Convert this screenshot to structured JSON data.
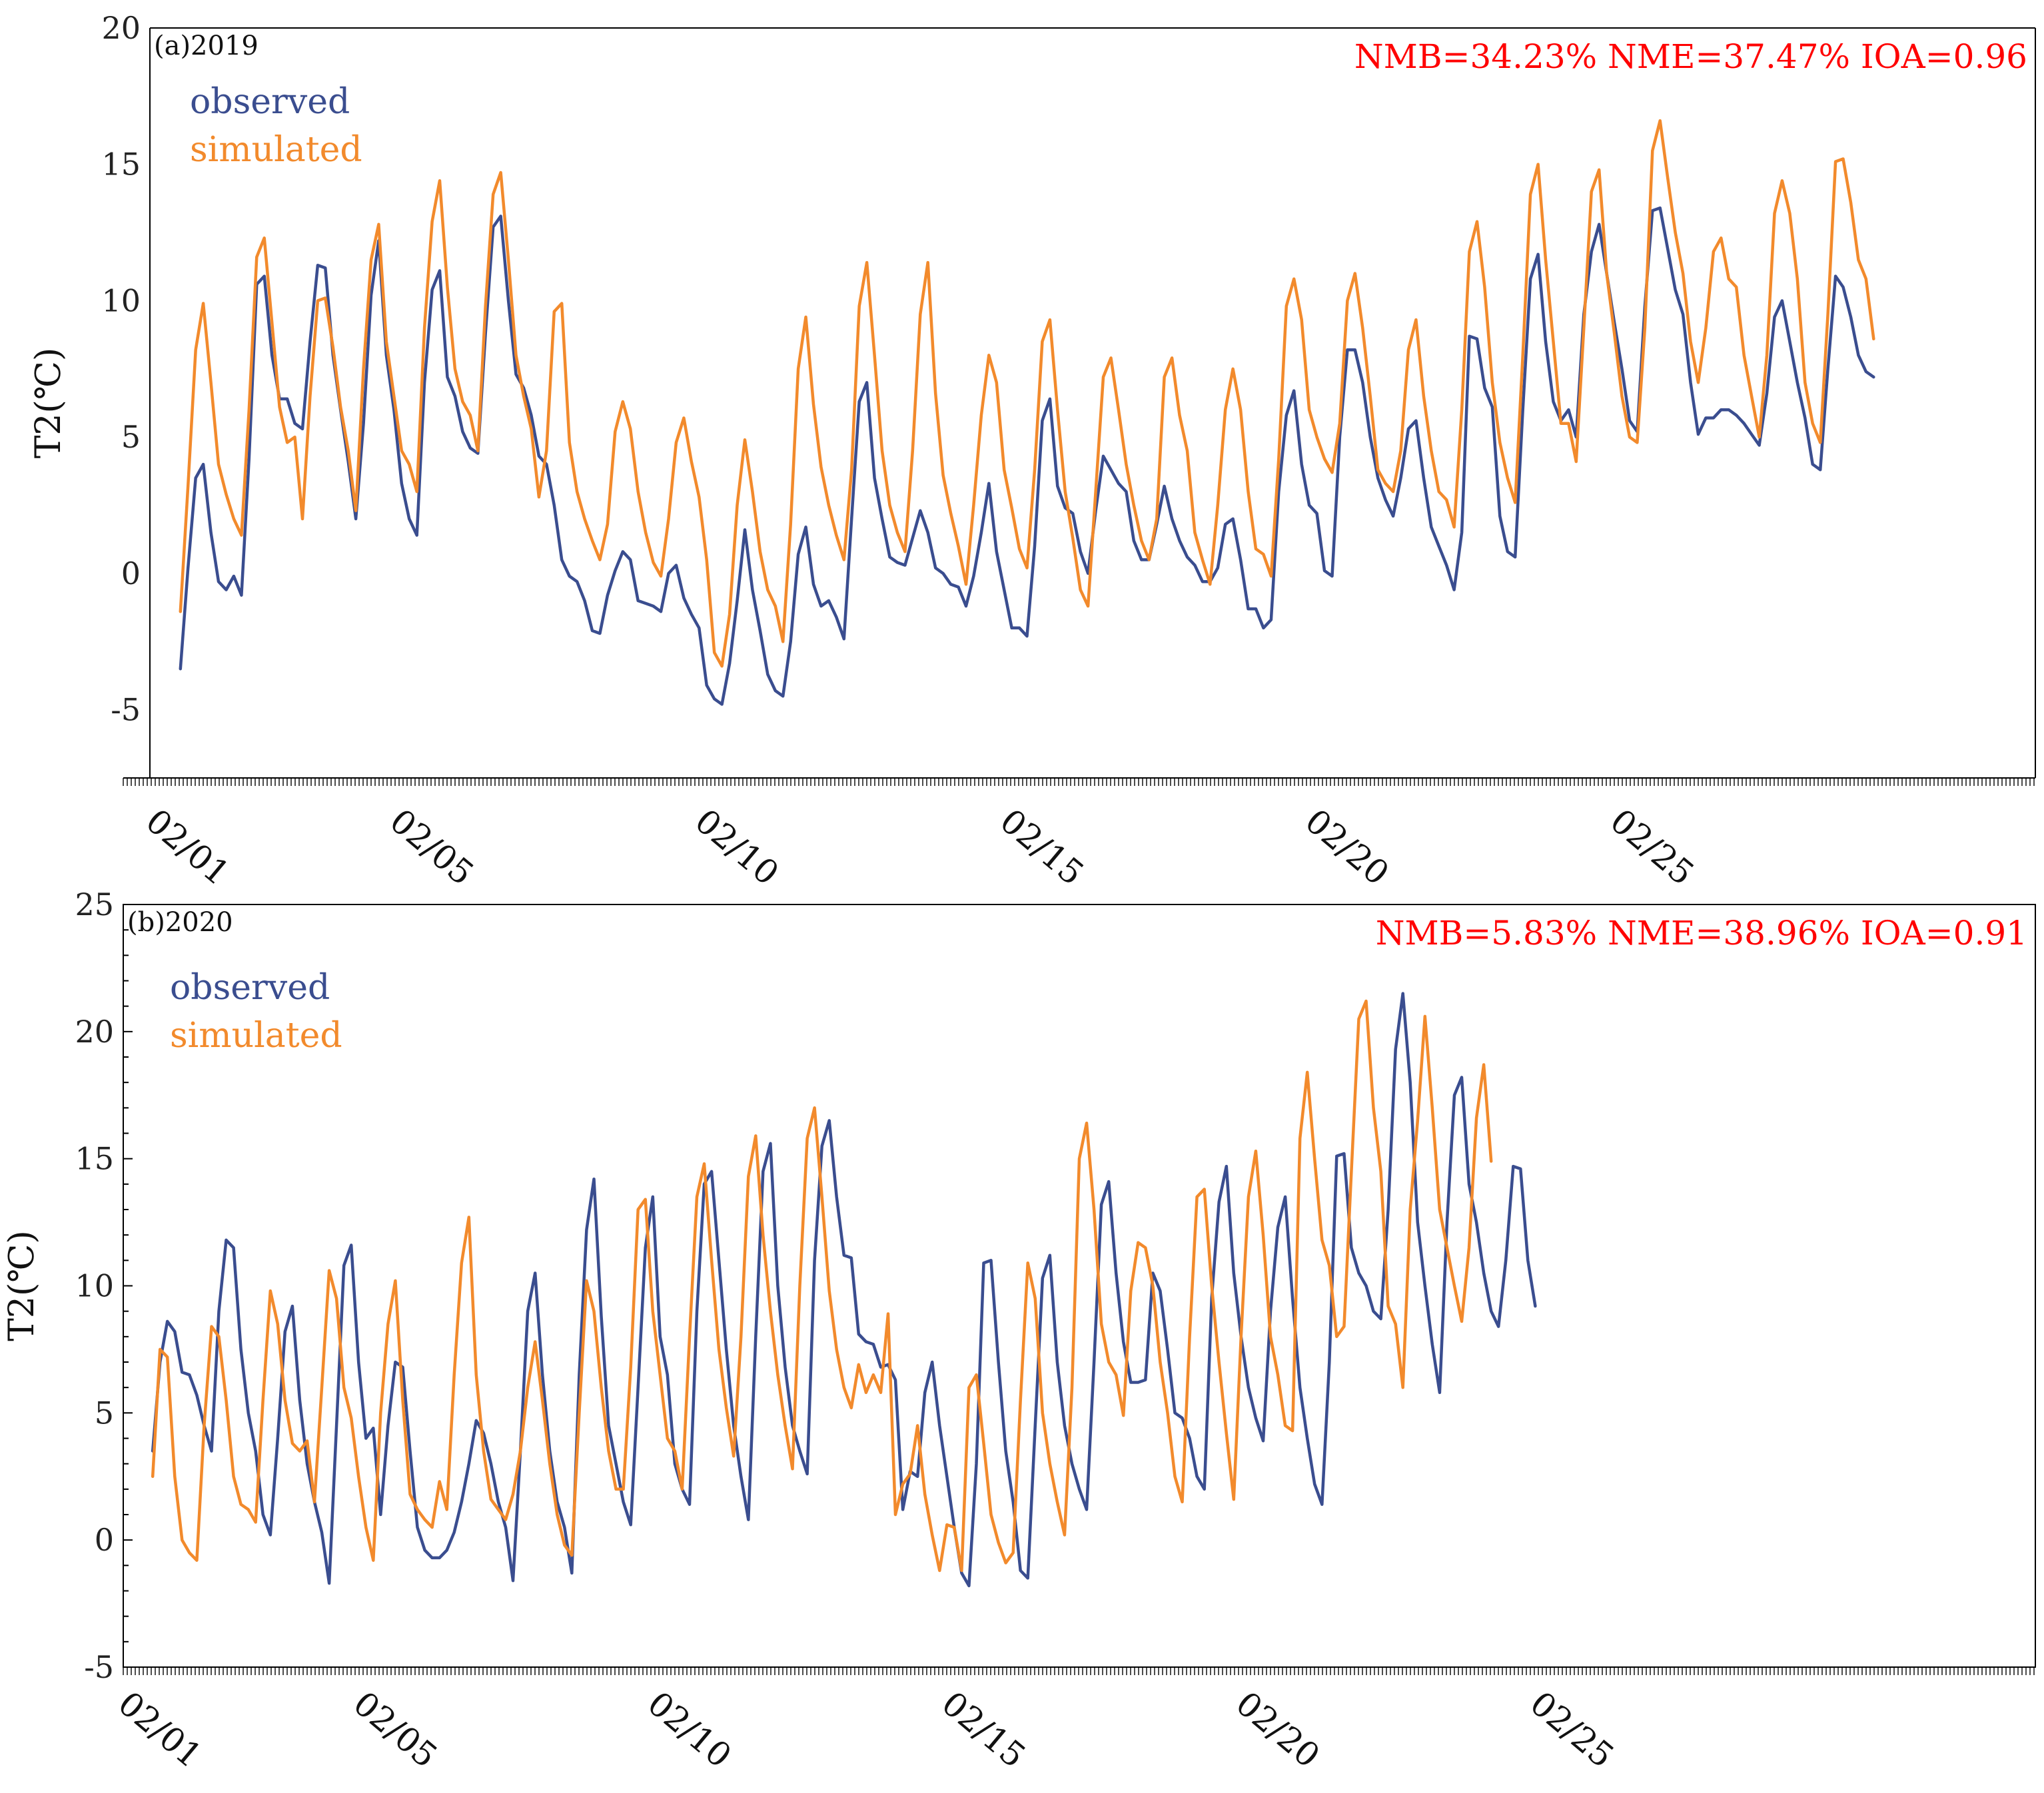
{
  "colors": {
    "observed": "#3a4d8f",
    "simulated": "#f28a2c",
    "metrics": "#ff0000",
    "axis": "#000000"
  },
  "chart_data": [
    {
      "type": "line",
      "panel_label": "(a)2019",
      "metrics": "NMB=34.23% NME=37.47% IOA=0.96",
      "ylabel": "T2(℃)",
      "xlabel": "",
      "ylim": [
        -7.5,
        20
      ],
      "yticks": [
        -5,
        0,
        5,
        10,
        15,
        20
      ],
      "xlim": [
        -0.5,
        30.4
      ],
      "x_tick_positions": [
        0,
        4,
        9,
        14,
        19,
        24
      ],
      "x_tick_labels": [
        "02/01",
        "02/05",
        "02/10",
        "02/15",
        "02/20",
        "02/25"
      ],
      "x_start": 0,
      "x_step": 0.125,
      "legend": [
        "observed",
        "simulated"
      ],
      "series": [
        {
          "name": "observed",
          "values": [
            -3.5,
            0.2,
            3.5,
            4.0,
            1.5,
            -0.3,
            -0.6,
            -0.1,
            -0.8,
            4.2,
            10.6,
            10.9,
            8.0,
            6.4,
            6.4,
            5.5,
            5.3,
            8.5,
            11.3,
            11.2,
            8.0,
            6.0,
            4.1,
            2.0,
            5.5,
            10.2,
            12.2,
            8.0,
            6.0,
            3.3,
            2.0,
            1.4,
            7.0,
            10.4,
            11.1,
            7.2,
            6.5,
            5.2,
            4.6,
            4.4,
            8.8,
            12.7,
            13.1,
            10.0,
            7.3,
            6.8,
            5.8,
            4.3,
            4.0,
            2.5,
            0.5,
            -0.1,
            -0.3,
            -1.0,
            -2.1,
            -2.2,
            -0.8,
            0.1,
            0.8,
            0.5,
            -1.0,
            -1.1,
            -1.2,
            -1.4,
            0.0,
            0.3,
            -0.9,
            -1.5,
            -2.0,
            -4.1,
            -4.6,
            -4.8,
            -3.3,
            -1.0,
            1.6,
            -0.6,
            -2.1,
            -3.7,
            -4.3,
            -4.5,
            -2.5,
            0.7,
            1.7,
            -0.4,
            -1.2,
            -1.0,
            -1.6,
            -2.4,
            2.0,
            6.3,
            7.0,
            3.5,
            2.0,
            0.6,
            0.4,
            0.3,
            1.3,
            2.3,
            1.5,
            0.2,
            0.0,
            -0.4,
            -0.5,
            -1.2,
            -0.1,
            1.5,
            3.3,
            0.8,
            -0.6,
            -2.0,
            -2.0,
            -2.3,
            1.0,
            5.6,
            6.4,
            3.2,
            2.4,
            2.2,
            0.8,
            0.0,
            2.3,
            4.3,
            3.8,
            3.3,
            3.0,
            1.2,
            0.5,
            0.5,
            1.8,
            3.2,
            2.0,
            1.2,
            0.6,
            0.3,
            -0.3,
            -0.3,
            0.2,
            1.8,
            2.0,
            0.5,
            -1.3,
            -1.3,
            -2.0,
            -1.7,
            3.0,
            5.8,
            6.7,
            4.0,
            2.5,
            2.2,
            0.1,
            -0.1,
            5.0,
            8.2,
            8.2,
            7.0,
            5.0,
            3.5,
            2.7,
            2.1,
            3.5,
            5.3,
            5.6,
            3.5,
            1.7,
            1.0,
            0.3,
            -0.6,
            1.5,
            8.7,
            8.6,
            6.8,
            6.1,
            2.1,
            0.8,
            0.6,
            6.0,
            10.8,
            11.7,
            8.5,
            6.3,
            5.6,
            6.0,
            5.0,
            9.5,
            11.8,
            12.8,
            11.0,
            9.2,
            7.5,
            5.6,
            5.2,
            9.8,
            13.3,
            13.4,
            11.9,
            10.4,
            9.5,
            7.0,
            5.1,
            5.7,
            5.7,
            6.0,
            6.0,
            5.8,
            5.5,
            5.1,
            4.7,
            6.6,
            9.4,
            10.0,
            8.5,
            7.0,
            5.7,
            4.0,
            3.8,
            7.5,
            10.9,
            10.5,
            9.4,
            8.0,
            7.4,
            7.2
          ]
        },
        {
          "name": "simulated",
          "values": [
            -1.4,
            3.2,
            8.2,
            9.9,
            7.0,
            4.0,
            2.9,
            2.0,
            1.4,
            6.0,
            11.6,
            12.3,
            9.2,
            6.1,
            4.8,
            5.0,
            2.0,
            6.5,
            10.0,
            10.1,
            8.3,
            6.1,
            4.5,
            2.3,
            7.5,
            11.5,
            12.8,
            8.5,
            6.5,
            4.5,
            4.0,
            3.0,
            9.0,
            12.9,
            14.4,
            10.5,
            7.5,
            6.3,
            5.8,
            4.5,
            9.8,
            13.9,
            14.7,
            11.5,
            8.0,
            6.5,
            5.3,
            2.8,
            4.5,
            9.6,
            9.9,
            4.8,
            3.0,
            2.0,
            1.2,
            0.5,
            1.8,
            5.2,
            6.3,
            5.3,
            3.0,
            1.5,
            0.4,
            -0.1,
            2.0,
            4.8,
            5.7,
            4.1,
            2.8,
            0.5,
            -2.9,
            -3.4,
            -1.5,
            2.5,
            4.9,
            3.0,
            0.8,
            -0.6,
            -1.2,
            -2.5,
            1.8,
            7.5,
            9.4,
            6.2,
            3.9,
            2.5,
            1.4,
            0.5,
            3.8,
            9.8,
            11.4,
            8.0,
            4.5,
            2.5,
            1.5,
            0.8,
            4.5,
            9.5,
            11.4,
            6.6,
            3.6,
            2.2,
            1.0,
            -0.4,
            2.5,
            5.8,
            8.0,
            7.0,
            3.8,
            2.4,
            0.9,
            0.2,
            3.8,
            8.5,
            9.3,
            6.0,
            3.0,
            1.3,
            -0.6,
            -1.2,
            3.0,
            7.2,
            7.9,
            6.0,
            4.0,
            2.5,
            1.2,
            0.5,
            2.0,
            7.2,
            7.9,
            5.8,
            4.5,
            1.5,
            0.5,
            -0.4,
            2.5,
            6.0,
            7.5,
            6.0,
            3.0,
            0.9,
            0.7,
            -0.1,
            4.2,
            9.8,
            10.8,
            9.3,
            6.0,
            5.0,
            4.2,
            3.7,
            5.5,
            10.0,
            11.0,
            9.0,
            6.5,
            3.8,
            3.3,
            3.0,
            4.5,
            8.2,
            9.3,
            6.5,
            4.5,
            3.0,
            2.7,
            1.7,
            6.0,
            11.8,
            12.9,
            10.5,
            7.0,
            4.8,
            3.5,
            2.6,
            8.0,
            13.9,
            15.0,
            11.5,
            8.5,
            5.5,
            5.5,
            4.1,
            9.0,
            14.0,
            14.8,
            11.0,
            8.8,
            6.5,
            5.0,
            4.8,
            9.0,
            15.5,
            16.6,
            14.5,
            12.5,
            11.0,
            8.5,
            7.0,
            9.0,
            11.8,
            12.3,
            10.8,
            10.5,
            8.0,
            6.5,
            5.0,
            8.0,
            13.2,
            14.4,
            13.2,
            10.8,
            7.0,
            5.5,
            4.8,
            9.5,
            15.1,
            15.2,
            13.6,
            11.5,
            10.8,
            8.6
          ]
        }
      ]
    },
    {
      "type": "line",
      "panel_label": "(b)2020",
      "metrics": "NMB=5.83% NME=38.96% IOA=0.91",
      "ylabel": "T2(℃)",
      "xlabel": "",
      "ylim": [
        -5,
        25
      ],
      "yticks": [
        -5,
        0,
        5,
        10,
        15,
        20,
        25
      ],
      "xlim": [
        -0.5,
        32
      ],
      "x_tick_positions": [
        0,
        4,
        9,
        14,
        19,
        24
      ],
      "x_tick_labels": [
        "02/01",
        "02/05",
        "02/10",
        "02/15",
        "02/20",
        "02/25"
      ],
      "x_start": 0,
      "x_step": 0.125,
      "legend": [
        "observed",
        "simulated"
      ],
      "series": [
        {
          "name": "observed",
          "values": [
            3.5,
            7.0,
            8.6,
            8.2,
            6.6,
            6.5,
            5.7,
            4.5,
            3.5,
            9.0,
            11.8,
            11.5,
            7.5,
            5.0,
            3.5,
            1.0,
            0.2,
            4.0,
            8.2,
            9.2,
            5.5,
            3.0,
            1.5,
            0.3,
            -1.7,
            4.5,
            10.8,
            11.6,
            7.0,
            4.0,
            4.4,
            1.0,
            4.5,
            7.0,
            6.8,
            3.5,
            0.5,
            -0.4,
            -0.7,
            -0.7,
            -0.4,
            0.3,
            1.5,
            3.0,
            4.7,
            4.2,
            3.0,
            1.5,
            0.5,
            -1.6,
            3.5,
            9.0,
            10.5,
            6.5,
            3.5,
            1.5,
            0.5,
            -1.3,
            6.5,
            12.2,
            14.2,
            8.8,
            4.5,
            3.0,
            1.5,
            0.6,
            6.0,
            11.5,
            13.5,
            8.0,
            6.5,
            3.0,
            2.0,
            1.4,
            9.0,
            14.0,
            14.5,
            11.0,
            7.5,
            4.5,
            2.5,
            0.8,
            8.0,
            14.5,
            15.6,
            10.0,
            6.8,
            4.5,
            3.5,
            2.6,
            11.0,
            15.5,
            16.5,
            13.5,
            11.2,
            11.1,
            8.1,
            7.8,
            7.7,
            6.8,
            6.9,
            6.3,
            1.2,
            2.7,
            2.5,
            5.8,
            7.0,
            4.5,
            2.5,
            0.5,
            -1.3,
            -1.8,
            3.0,
            10.9,
            11.0,
            7.0,
            3.5,
            1.5,
            -1.2,
            -1.5,
            4.5,
            10.3,
            11.2,
            7.0,
            4.5,
            3.0,
            2.0,
            1.2,
            7.0,
            13.2,
            14.1,
            10.5,
            7.8,
            6.2,
            6.2,
            6.3,
            10.5,
            9.8,
            7.5,
            5.0,
            4.8,
            4.0,
            2.5,
            2.0,
            9.5,
            13.3,
            14.7,
            10.5,
            8.0,
            6.0,
            4.8,
            3.9,
            9.0,
            12.3,
            13.5,
            9.5,
            6.0,
            4.0,
            2.2,
            1.4,
            7.0,
            15.1,
            15.2,
            11.5,
            10.5,
            10.0,
            9.0,
            8.7,
            13.0,
            19.3,
            21.5,
            18.0,
            12.5,
            10.0,
            7.7,
            5.8,
            12.5,
            17.5,
            18.2,
            14.0,
            12.5,
            10.5,
            9.0,
            8.4,
            11.0,
            14.7,
            14.6,
            11.0,
            9.2
          ]
        },
        {
          "name": "simulated",
          "values": [
            2.5,
            7.5,
            7.2,
            2.5,
            0.0,
            -0.5,
            -0.8,
            4.5,
            8.4,
            8.0,
            5.5,
            2.5,
            1.4,
            1.2,
            0.7,
            5.5,
            9.8,
            8.5,
            5.5,
            3.8,
            3.5,
            3.9,
            1.5,
            6.0,
            10.6,
            9.5,
            6.0,
            4.8,
            2.5,
            0.5,
            -0.8,
            5.0,
            8.5,
            10.2,
            5.5,
            1.8,
            1.2,
            0.8,
            0.5,
            2.3,
            1.2,
            6.5,
            10.9,
            12.7,
            6.5,
            3.5,
            1.6,
            1.2,
            0.8,
            1.8,
            3.5,
            6.0,
            7.8,
            5.5,
            3.0,
            1.0,
            -0.2,
            -0.6,
            5.0,
            10.2,
            9.0,
            6.0,
            3.5,
            2.0,
            2.0,
            6.8,
            13.0,
            13.4,
            9.0,
            6.5,
            4.0,
            3.5,
            2.0,
            8.0,
            13.5,
            14.8,
            11.0,
            7.5,
            5.2,
            3.3,
            8.0,
            14.3,
            15.9,
            12.0,
            9.0,
            6.5,
            4.5,
            2.8,
            10.0,
            15.8,
            17.0,
            13.5,
            9.8,
            7.5,
            6.0,
            5.2,
            6.9,
            5.8,
            6.5,
            5.8,
            8.9,
            1.0,
            2.2,
            2.6,
            4.5,
            1.8,
            0.2,
            -1.2,
            0.6,
            0.5,
            -1.2,
            6.0,
            6.5,
            3.8,
            1.0,
            -0.1,
            -0.9,
            -0.5,
            5.5,
            10.9,
            9.5,
            5.0,
            3.0,
            1.5,
            0.2,
            6.0,
            15.0,
            16.4,
            13.0,
            8.5,
            7.0,
            6.5,
            4.9,
            9.8,
            11.7,
            11.5,
            10.0,
            7.0,
            5.0,
            2.5,
            1.5,
            8.0,
            13.5,
            13.8,
            10.0,
            7.0,
            4.2,
            1.6,
            8.0,
            13.5,
            15.3,
            12.0,
            8.0,
            6.5,
            4.5,
            4.3,
            15.8,
            18.4,
            15.0,
            11.8,
            10.8,
            8.0,
            8.4,
            14.5,
            20.5,
            21.2,
            17.0,
            14.5,
            9.2,
            8.5,
            6.0,
            13.0,
            16.5,
            20.6,
            17.0,
            13.0,
            11.5,
            10.0,
            8.6,
            11.5,
            16.6,
            18.7,
            14.9
          ]
        }
      ]
    }
  ]
}
